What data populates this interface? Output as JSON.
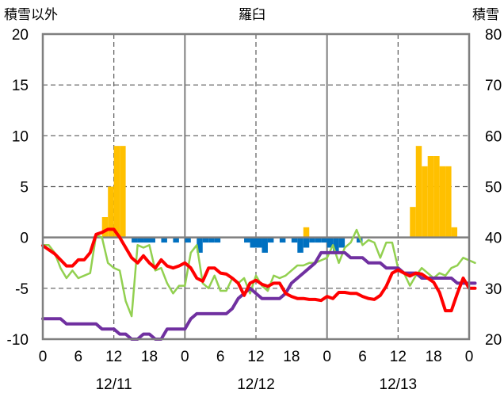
{
  "chart_data": {
    "type": "bar+line",
    "title": "羅臼",
    "left_axis_title": "積雪以外",
    "right_axis_title": "積雪",
    "ylim_left": [
      -10,
      20
    ],
    "ylim_right": [
      20,
      80
    ],
    "y_ticks_left": [
      "-10",
      "-5",
      "0",
      "5",
      "10",
      "15",
      "20"
    ],
    "y_ticks_right": [
      "20",
      "30",
      "40",
      "50",
      "60",
      "70",
      "80"
    ],
    "x_ticks": [
      "0",
      "6",
      "12",
      "18",
      "0",
      "6",
      "12",
      "18",
      "0",
      "6",
      "12",
      "18",
      "0"
    ],
    "date_labels": [
      "12/11",
      "12/12",
      "12/13"
    ],
    "x_range_hours": [
      0,
      72
    ],
    "colors": {
      "snowfall": "#ffc000",
      "snow_decrease": "#0070c0",
      "temperature": "#ff0000",
      "humidity": "#92d050",
      "snow_depth": "#7030a0",
      "gridline": "#7f7f7f",
      "frame": "#7f7f7f"
    },
    "series": [
      {
        "key": "snowfall",
        "kind": "bar",
        "axis": "left",
        "points": [
          [
            10,
            2
          ],
          [
            11,
            5
          ],
          [
            12,
            9
          ],
          [
            13,
            9
          ],
          [
            44,
            1
          ],
          [
            62,
            3
          ],
          [
            63,
            9
          ],
          [
            64,
            7
          ],
          [
            65,
            8
          ],
          [
            66,
            8
          ],
          [
            67,
            7
          ],
          [
            68,
            7
          ],
          [
            69,
            1
          ]
        ]
      },
      {
        "key": "snow_decrease",
        "kind": "bar",
        "axis": "left",
        "points": [
          [
            15,
            -0.5
          ],
          [
            16,
            -0.5
          ],
          [
            17,
            -0.5
          ],
          [
            18,
            -0.5
          ],
          [
            20,
            -0.5
          ],
          [
            22,
            -0.5
          ],
          [
            24,
            -0.5
          ],
          [
            26,
            -1.5
          ],
          [
            27,
            -0.5
          ],
          [
            28,
            -0.5
          ],
          [
            29,
            -0.5
          ],
          [
            34,
            -0.5
          ],
          [
            35,
            -1
          ],
          [
            36,
            -1
          ],
          [
            37,
            -1.5
          ],
          [
            38,
            -0.5
          ],
          [
            40,
            -0.5
          ],
          [
            42,
            -0.5
          ],
          [
            43,
            -1.5
          ],
          [
            44,
            -1
          ],
          [
            45,
            -0.5
          ],
          [
            46,
            -0.5
          ],
          [
            47,
            -0.5
          ],
          [
            48,
            -1
          ],
          [
            49,
            -1.5
          ],
          [
            50,
            -1
          ],
          [
            53,
            -0.5
          ]
        ]
      },
      {
        "key": "temperature",
        "kind": "line",
        "axis": "left",
        "points": [
          [
            0,
            -0.8
          ],
          [
            1,
            -1.2
          ],
          [
            2,
            -1.6
          ],
          [
            3,
            -2.2
          ],
          [
            4,
            -2.8
          ],
          [
            5,
            -2.8
          ],
          [
            6,
            -2.2
          ],
          [
            7,
            -2.2
          ],
          [
            8,
            -1.5
          ],
          [
            9,
            0.3
          ],
          [
            10,
            0.5
          ],
          [
            11,
            0.8
          ],
          [
            12,
            0.8
          ],
          [
            13,
            0
          ],
          [
            14,
            -1
          ],
          [
            15,
            -2
          ],
          [
            16,
            -2.5
          ],
          [
            17,
            -1.8
          ],
          [
            18,
            -2.5
          ],
          [
            19,
            -3
          ],
          [
            20,
            -2.2
          ],
          [
            21,
            -2.8
          ],
          [
            22,
            -3
          ],
          [
            23,
            -2.8
          ],
          [
            24,
            -2.5
          ],
          [
            25,
            -3
          ],
          [
            26,
            -4
          ],
          [
            27,
            -4.3
          ],
          [
            28,
            -3
          ],
          [
            29,
            -3
          ],
          [
            30,
            -3.5
          ],
          [
            31,
            -3.6
          ],
          [
            32,
            -4
          ],
          [
            33,
            -4.5
          ],
          [
            34,
            -5.7
          ],
          [
            35,
            -4.5
          ],
          [
            36,
            -4.2
          ],
          [
            37,
            -4.6
          ],
          [
            38,
            -4.8
          ],
          [
            39,
            -4.5
          ],
          [
            40,
            -4.5
          ],
          [
            41,
            -5.5
          ],
          [
            42,
            -5.8
          ],
          [
            43,
            -6
          ],
          [
            44,
            -6
          ],
          [
            45,
            -6.1
          ],
          [
            46,
            -6.1
          ],
          [
            47,
            -6.2
          ],
          [
            48,
            -5.8
          ],
          [
            49,
            -6
          ],
          [
            50,
            -5.4
          ],
          [
            51,
            -5.4
          ],
          [
            52,
            -5.5
          ],
          [
            53,
            -5.5
          ],
          [
            54,
            -5.8
          ],
          [
            55,
            -6
          ],
          [
            56,
            -6.1
          ],
          [
            57,
            -5.7
          ],
          [
            58,
            -4.8
          ],
          [
            59,
            -3.5
          ],
          [
            60,
            -3.2
          ],
          [
            61,
            -3.5
          ],
          [
            62,
            -3.8
          ],
          [
            63,
            -3.5
          ],
          [
            64,
            -3.6
          ],
          [
            65,
            -4
          ],
          [
            66,
            -4.4
          ],
          [
            67,
            -5.4
          ],
          [
            68,
            -7.2
          ],
          [
            69,
            -7.2
          ],
          [
            70,
            -5.5
          ],
          [
            71,
            -4
          ],
          [
            72,
            -5
          ],
          [
            73,
            -5
          ]
        ]
      },
      {
        "key": "humidity",
        "kind": "line",
        "axis": "right",
        "points": [
          [
            0,
            38.5
          ],
          [
            1,
            38.5
          ],
          [
            2,
            37
          ],
          [
            3,
            34
          ],
          [
            4,
            32
          ],
          [
            5,
            33.5
          ],
          [
            6,
            32
          ],
          [
            7,
            32.5
          ],
          [
            8,
            33
          ],
          [
            9,
            40.5
          ],
          [
            10,
            40
          ],
          [
            11,
            35
          ],
          [
            12,
            34
          ],
          [
            13,
            33.5
          ],
          [
            14,
            27.5
          ],
          [
            15,
            24.5
          ],
          [
            16,
            38.5
          ],
          [
            17,
            38
          ],
          [
            18,
            38.5
          ],
          [
            19,
            33.5
          ],
          [
            20,
            34
          ],
          [
            21,
            31
          ],
          [
            22,
            29
          ],
          [
            23,
            30.5
          ],
          [
            24,
            30.5
          ],
          [
            25,
            37
          ],
          [
            26,
            38.5
          ],
          [
            27,
            31
          ],
          [
            28,
            30
          ],
          [
            29,
            32.5
          ],
          [
            30,
            29.5
          ],
          [
            31,
            29.5
          ],
          [
            32,
            32
          ],
          [
            33,
            31
          ],
          [
            34,
            32
          ],
          [
            35,
            29
          ],
          [
            36,
            32.5
          ],
          [
            37,
            30.5
          ],
          [
            38,
            29.5
          ],
          [
            39,
            32.5
          ],
          [
            40,
            32
          ],
          [
            41,
            32.5
          ],
          [
            42,
            33.5
          ],
          [
            43,
            34.5
          ],
          [
            44,
            34.5
          ],
          [
            45,
            35
          ],
          [
            46,
            35
          ],
          [
            47,
            35.5
          ],
          [
            48,
            36
          ],
          [
            49,
            38.5
          ],
          [
            50,
            35
          ],
          [
            51,
            38
          ],
          [
            52,
            39
          ],
          [
            53,
            41.5
          ],
          [
            54,
            38.5
          ],
          [
            55,
            39.5
          ],
          [
            56,
            39
          ],
          [
            57,
            36
          ],
          [
            58,
            39
          ],
          [
            59,
            39
          ],
          [
            60,
            34
          ],
          [
            61,
            33
          ],
          [
            62,
            30.5
          ],
          [
            63,
            32.5
          ],
          [
            64,
            34
          ],
          [
            65,
            33
          ],
          [
            66,
            32
          ],
          [
            67,
            33
          ],
          [
            68,
            32.5
          ],
          [
            69,
            34
          ],
          [
            70,
            34.5
          ],
          [
            71,
            36
          ],
          [
            72,
            35.5
          ],
          [
            73,
            35
          ]
        ]
      },
      {
        "key": "snow_depth",
        "kind": "line",
        "axis": "right",
        "points": [
          [
            0,
            24
          ],
          [
            1,
            24
          ],
          [
            2,
            24
          ],
          [
            3,
            24
          ],
          [
            4,
            23
          ],
          [
            5,
            23
          ],
          [
            6,
            23
          ],
          [
            7,
            23
          ],
          [
            8,
            23
          ],
          [
            9,
            23
          ],
          [
            10,
            22
          ],
          [
            11,
            22
          ],
          [
            12,
            22
          ],
          [
            13,
            21
          ],
          [
            14,
            21
          ],
          [
            15,
            20
          ],
          [
            16,
            20
          ],
          [
            17,
            21
          ],
          [
            18,
            21
          ],
          [
            19,
            20
          ],
          [
            20,
            20
          ],
          [
            21,
            22
          ],
          [
            22,
            22
          ],
          [
            23,
            22
          ],
          [
            24,
            22
          ],
          [
            25,
            24
          ],
          [
            26,
            25
          ],
          [
            27,
            25
          ],
          [
            28,
            25
          ],
          [
            29,
            25
          ],
          [
            30,
            25
          ],
          [
            31,
            25
          ],
          [
            32,
            26
          ],
          [
            33,
            28
          ],
          [
            34,
            29
          ],
          [
            35,
            30
          ],
          [
            36,
            29
          ],
          [
            37,
            28
          ],
          [
            38,
            28
          ],
          [
            39,
            28
          ],
          [
            40,
            28
          ],
          [
            41,
            29
          ],
          [
            42,
            31
          ],
          [
            43,
            32
          ],
          [
            44,
            33
          ],
          [
            45,
            34
          ],
          [
            46,
            35
          ],
          [
            47,
            37
          ],
          [
            48,
            37
          ],
          [
            49,
            37
          ],
          [
            50,
            37
          ],
          [
            51,
            37
          ],
          [
            52,
            36
          ],
          [
            53,
            36
          ],
          [
            54,
            36
          ],
          [
            55,
            35
          ],
          [
            56,
            35
          ],
          [
            57,
            35
          ],
          [
            58,
            34
          ],
          [
            59,
            34
          ],
          [
            60,
            34
          ],
          [
            61,
            33
          ],
          [
            62,
            33
          ],
          [
            63,
            33
          ],
          [
            64,
            32
          ],
          [
            65,
            32
          ],
          [
            66,
            32
          ],
          [
            67,
            32
          ],
          [
            68,
            32
          ],
          [
            69,
            32
          ],
          [
            70,
            31
          ],
          [
            71,
            31
          ],
          [
            72,
            31
          ],
          [
            73,
            31
          ]
        ]
      }
    ]
  }
}
